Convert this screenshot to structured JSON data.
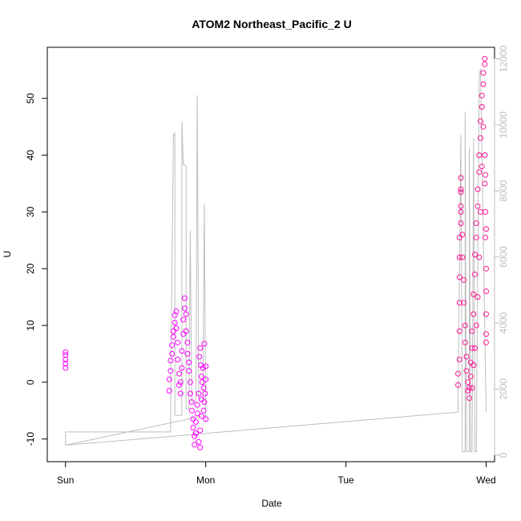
{
  "chart_data": {
    "type": "scatter",
    "title": "ATOM2 Northeast_Pacific_2 U",
    "xlabel": "Date",
    "ylabel": "U",
    "x_ticks": [
      {
        "label": "Sun",
        "value": 0
      },
      {
        "label": "Mon",
        "value": 1
      },
      {
        "label": "Tue",
        "value": 2
      },
      {
        "label": "Wed",
        "value": 3
      }
    ],
    "xlim": [
      -0.13,
      3.06
    ],
    "ylim": [
      -14,
      59
    ],
    "y_ticks": [
      -10,
      0,
      10,
      20,
      30,
      40,
      50
    ],
    "y2lim": [
      -200,
      12350
    ],
    "y2_ticks": [
      0,
      2000,
      4000,
      6000,
      8000,
      10000,
      12000
    ],
    "grid": false,
    "legend": "none",
    "colors": {
      "early_points": "#ff00ff",
      "late_points": "#ff1493",
      "secondary_line": "#bdbdbd",
      "axis": "#000000"
    },
    "series": [
      {
        "color": "#ff00ff",
        "style": "open-circle",
        "points": [
          [
            0.0,
            2.5
          ],
          [
            0.0,
            3.3
          ],
          [
            0.0,
            4.0
          ],
          [
            0.0,
            4.8
          ],
          [
            0.0,
            5.3
          ],
          [
            0.74,
            -1.5
          ],
          [
            0.74,
            0.5
          ],
          [
            0.75,
            2.0
          ],
          [
            0.75,
            3.8
          ],
          [
            0.76,
            5.0
          ],
          [
            0.76,
            6.5
          ],
          [
            0.77,
            8.0
          ],
          [
            0.77,
            9.0
          ],
          [
            0.78,
            10.5
          ],
          [
            0.78,
            11.8
          ],
          [
            0.79,
            12.5
          ],
          [
            0.79,
            9.5
          ],
          [
            0.8,
            7.0
          ],
          [
            0.8,
            4.0
          ],
          [
            0.81,
            1.5
          ],
          [
            0.81,
            -0.5
          ],
          [
            0.82,
            -2.0
          ],
          [
            0.82,
            0.0
          ],
          [
            0.83,
            2.5
          ],
          [
            0.83,
            5.5
          ],
          [
            0.84,
            8.5
          ],
          [
            0.84,
            11.0
          ],
          [
            0.85,
            13.0
          ],
          [
            0.85,
            14.8
          ],
          [
            0.86,
            12.0
          ],
          [
            0.86,
            9.0
          ],
          [
            0.87,
            7.0
          ],
          [
            0.87,
            5.0
          ],
          [
            0.88,
            3.5
          ],
          [
            0.88,
            2.0
          ],
          [
            0.89,
            0.0
          ],
          [
            0.89,
            -2.0
          ],
          [
            0.9,
            -3.5
          ],
          [
            0.9,
            -5.0
          ],
          [
            0.91,
            -6.5
          ],
          [
            0.91,
            -8.0
          ],
          [
            0.92,
            -9.5
          ],
          [
            0.92,
            -11.0
          ],
          [
            0.93,
            -9.0
          ],
          [
            0.93,
            -7.0
          ],
          [
            0.94,
            -5.5
          ],
          [
            0.94,
            -4.0
          ],
          [
            0.95,
            -2.0
          ],
          [
            0.95,
            -10.5
          ],
          [
            0.96,
            -11.5
          ],
          [
            0.96,
            -8.5
          ],
          [
            0.97,
            -6.0
          ],
          [
            0.97,
            -3.0
          ],
          [
            0.955,
            4.5
          ],
          [
            0.96,
            6.0
          ],
          [
            0.965,
            3.0
          ],
          [
            0.97,
            1.0
          ],
          [
            0.975,
            0.0
          ],
          [
            0.98,
            2.5
          ],
          [
            0.985,
            -1.0
          ],
          [
            0.99,
            -3.5
          ],
          [
            0.995,
            -2.0
          ],
          [
            1.0,
            0.5
          ],
          [
            1.0,
            2.8
          ],
          [
            0.99,
            6.8
          ],
          [
            1.0,
            -6.5
          ],
          [
            0.985,
            -5.0
          ]
        ]
      },
      {
        "color": "#ff1493",
        "style": "open-circle",
        "points": [
          [
            2.8,
            -0.5
          ],
          [
            2.8,
            1.5
          ],
          [
            2.81,
            4.0
          ],
          [
            2.81,
            9.0
          ],
          [
            2.81,
            14.0
          ],
          [
            2.81,
            18.5
          ],
          [
            2.81,
            22.0
          ],
          [
            2.81,
            25.5
          ],
          [
            2.82,
            28.0
          ],
          [
            2.82,
            31.0
          ],
          [
            2.82,
            33.5
          ],
          [
            2.82,
            36.0
          ],
          [
            2.82,
            34.0
          ],
          [
            2.82,
            30.0
          ],
          [
            2.83,
            26.0
          ],
          [
            2.83,
            22.0
          ],
          [
            2.84,
            18.0
          ],
          [
            2.84,
            14.0
          ],
          [
            2.85,
            10.0
          ],
          [
            2.85,
            7.0
          ],
          [
            2.86,
            4.5
          ],
          [
            2.86,
            2.0
          ],
          [
            2.87,
            0.0
          ],
          [
            2.87,
            -1.5
          ],
          [
            2.88,
            -2.8
          ],
          [
            2.88,
            -1.0
          ],
          [
            2.89,
            1.0
          ],
          [
            2.89,
            3.5
          ],
          [
            2.9,
            6.0
          ],
          [
            2.9,
            9.0
          ],
          [
            2.91,
            12.0
          ],
          [
            2.91,
            15.5
          ],
          [
            2.92,
            19.0
          ],
          [
            2.92,
            22.5
          ],
          [
            2.93,
            25.5
          ],
          [
            2.93,
            28.0
          ],
          [
            2.94,
            31.0
          ],
          [
            2.94,
            34.0
          ],
          [
            2.95,
            37.0
          ],
          [
            2.95,
            40.0
          ],
          [
            2.96,
            43.0
          ],
          [
            2.96,
            46.0
          ],
          [
            2.97,
            48.5
          ],
          [
            2.97,
            50.5
          ],
          [
            2.98,
            52.5
          ],
          [
            2.98,
            54.5
          ],
          [
            2.99,
            56.0
          ],
          [
            2.99,
            57.0
          ],
          [
            2.99,
            40.0
          ],
          [
            2.99,
            35.0
          ],
          [
            2.995,
            30.0
          ],
          [
            2.995,
            25.5
          ],
          [
            3.0,
            20.0
          ],
          [
            3.0,
            16.0
          ],
          [
            3.0,
            12.0
          ],
          [
            3.0,
            8.5
          ],
          [
            3.0,
            7.0
          ],
          [
            2.995,
            36.5
          ],
          [
            3.0,
            27.0
          ],
          [
            2.98,
            45.0
          ],
          [
            2.97,
            38.0
          ],
          [
            2.96,
            30.0
          ],
          [
            2.95,
            22.0
          ],
          [
            2.94,
            15.0
          ],
          [
            2.93,
            10.0
          ],
          [
            2.92,
            6.0
          ],
          [
            2.91,
            3.0
          ],
          [
            2.9,
            -1.0
          ]
        ]
      },
      {
        "color": "#bdbdbd",
        "style": "line",
        "axis": "right",
        "points": [
          [
            0.0,
            300
          ],
          [
            0.0,
            700
          ],
          [
            0.75,
            700
          ],
          [
            0.75,
            2000
          ],
          [
            0.77,
            9700
          ],
          [
            0.78,
            9750
          ],
          [
            0.78,
            1200
          ],
          [
            0.83,
            1200
          ],
          [
            0.83,
            10100
          ],
          [
            0.84,
            8800
          ],
          [
            0.86,
            8750
          ],
          [
            0.86,
            1400
          ],
          [
            0.88,
            1400
          ],
          [
            0.89,
            6800
          ],
          [
            0.9,
            1600
          ],
          [
            0.93,
            1600
          ],
          [
            0.94,
            10900
          ],
          [
            0.95,
            1700
          ],
          [
            0.98,
            1700
          ],
          [
            0.99,
            7600
          ],
          [
            1.0,
            1000
          ],
          [
            1.0,
            1200
          ],
          [
            0.0,
            300
          ],
          [
            2.8,
            1300
          ],
          [
            2.8,
            1500
          ],
          [
            2.82,
            9700
          ],
          [
            2.83,
            100
          ],
          [
            2.85,
            100
          ],
          [
            2.85,
            10400
          ],
          [
            2.86,
            100
          ],
          [
            2.88,
            100
          ],
          [
            2.88,
            9300
          ],
          [
            2.89,
            100
          ],
          [
            2.9,
            100
          ],
          [
            2.91,
            9600
          ],
          [
            2.92,
            100
          ],
          [
            2.93,
            100
          ],
          [
            2.95,
            11500
          ],
          [
            2.96,
            11700
          ],
          [
            3.0,
            1300
          ]
        ]
      }
    ]
  }
}
